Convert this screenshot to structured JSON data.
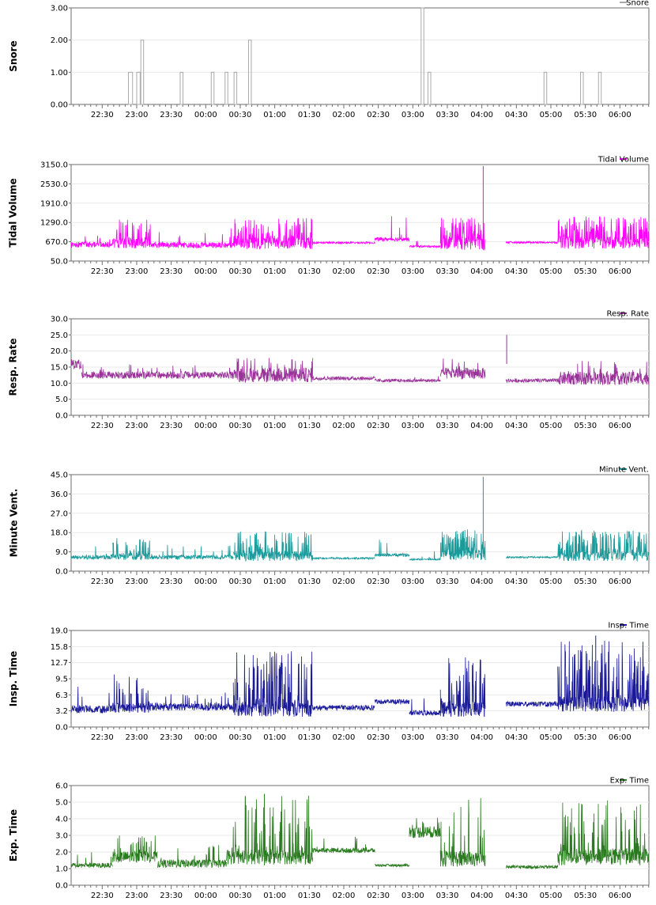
{
  "x_ticks": [
    "22:30",
    "23:00",
    "23:30",
    "00:00",
    "00:30",
    "01:00",
    "01:30",
    "02:00",
    "02:30",
    "03:00",
    "03:30",
    "04:00",
    "04:30",
    "05:00",
    "05:30",
    "06:00"
  ],
  "chart_data": [
    {
      "type": "bar",
      "title": "Snore",
      "ylabel": "Snore",
      "legend": "Snore",
      "color": "#a9a9a9",
      "ylim": [
        0,
        3
      ],
      "y_ticks": [
        "0.00",
        "1.00",
        "2.00",
        "3.00"
      ],
      "xlim_hours": [
        22.05,
        30.42
      ],
      "events": [
        {
          "t": 22.88,
          "w": 0.06,
          "v": 1
        },
        {
          "t": 23.0,
          "w": 0.05,
          "v": 1
        },
        {
          "t": 23.06,
          "w": 0.04,
          "v": 2
        },
        {
          "t": 23.63,
          "w": 0.04,
          "v": 1
        },
        {
          "t": 24.08,
          "w": 0.04,
          "v": 1
        },
        {
          "t": 24.28,
          "w": 0.04,
          "v": 1
        },
        {
          "t": 24.41,
          "w": 0.04,
          "v": 1
        },
        {
          "t": 24.62,
          "w": 0.04,
          "v": 2
        },
        {
          "t": 27.12,
          "w": 0.04,
          "v": 3
        },
        {
          "t": 27.22,
          "w": 0.04,
          "v": 1
        },
        {
          "t": 28.9,
          "w": 0.04,
          "v": 1
        },
        {
          "t": 29.43,
          "w": 0.04,
          "v": 1
        },
        {
          "t": 29.69,
          "w": 0.04,
          "v": 1
        }
      ]
    },
    {
      "type": "line",
      "title": "Tidal Volume",
      "ylabel": "Tidal Volume",
      "legend": "Tidal Volume",
      "color": "#ff00ff",
      "ylim": [
        50,
        3150
      ],
      "y_ticks": [
        "50.0",
        "670.0",
        "1290.0",
        "1910.0",
        "2530.0",
        "3150.0"
      ],
      "xlim_hours": [
        22.05,
        30.42
      ],
      "gaps": [
        [
          28.05,
          28.35
        ]
      ],
      "segments": [
        {
          "from": 22.05,
          "to": 22.65,
          "base": 580,
          "amp": 180,
          "spikes": 0.04,
          "spike_max": 900
        },
        {
          "from": 22.65,
          "to": 23.2,
          "base": 620,
          "amp": 320,
          "spikes": 0.25,
          "spike_max": 1400
        },
        {
          "from": 23.2,
          "to": 24.4,
          "base": 560,
          "amp": 180,
          "spikes": 0.05,
          "spike_max": 1100
        },
        {
          "from": 24.4,
          "to": 25.55,
          "base": 620,
          "amp": 380,
          "spikes": 0.35,
          "spike_max": 1450
        },
        {
          "from": 25.55,
          "to": 26.45,
          "base": 640,
          "amp": 60,
          "spikes": 0.0,
          "spike_max": 700
        },
        {
          "from": 26.45,
          "to": 26.95,
          "base": 750,
          "amp": 120,
          "spikes": 0.05,
          "spike_max": 1500
        },
        {
          "from": 26.95,
          "to": 27.4,
          "base": 520,
          "amp": 60,
          "spikes": 0.02,
          "spike_max": 900
        },
        {
          "from": 27.4,
          "to": 28.05,
          "base": 600,
          "amp": 400,
          "spikes": 0.4,
          "spike_max": 1450
        },
        {
          "from": 28.35,
          "to": 29.1,
          "base": 650,
          "amp": 60,
          "spikes": 0.0,
          "spike_max": 700
        },
        {
          "from": 29.1,
          "to": 30.42,
          "base": 640,
          "amp": 400,
          "spikes": 0.4,
          "spike_max": 1500
        }
      ],
      "peaks": [
        {
          "t": 28.02,
          "v": 3100
        }
      ]
    },
    {
      "type": "line",
      "title": "Resp. Rate",
      "ylabel": "Resp. Rate",
      "legend": "Resp. Rate",
      "color": "#993399",
      "ylim": [
        0,
        30
      ],
      "y_ticks": [
        "0.0",
        "5.0",
        "10.0",
        "15.0",
        "20.0",
        "25.0",
        "30.0"
      ],
      "xlim_hours": [
        22.05,
        30.42
      ],
      "gaps": [
        [
          28.05,
          28.35
        ]
      ],
      "segments": [
        {
          "from": 22.05,
          "to": 22.2,
          "base": 16,
          "amp": 3,
          "spikes": 0.0,
          "spike_max": 19
        },
        {
          "from": 22.2,
          "to": 24.4,
          "base": 12.5,
          "amp": 2.2,
          "spikes": 0.05,
          "spike_max": 16
        },
        {
          "from": 24.4,
          "to": 25.55,
          "base": 12.5,
          "amp": 4.5,
          "spikes": 0.1,
          "spike_max": 18
        },
        {
          "from": 25.55,
          "to": 26.45,
          "base": 11.5,
          "amp": 1.2,
          "spikes": 0.0,
          "spike_max": 13
        },
        {
          "from": 26.45,
          "to": 27.4,
          "base": 10.8,
          "amp": 1.0,
          "spikes": 0.02,
          "spike_max": 13
        },
        {
          "from": 27.4,
          "to": 28.05,
          "base": 13,
          "amp": 3.5,
          "spikes": 0.1,
          "spike_max": 18
        },
        {
          "from": 28.35,
          "to": 29.1,
          "base": 10.8,
          "amp": 1.2,
          "spikes": 0.0,
          "spike_max": 13
        },
        {
          "from": 29.1,
          "to": 30.42,
          "base": 11.5,
          "amp": 4.0,
          "spikes": 0.1,
          "spike_max": 17
        }
      ],
      "peaks": [
        {
          "t": 28.36,
          "v": 25
        }
      ]
    },
    {
      "type": "line",
      "title": "Minute Vent.",
      "ylabel": "Minute Vent.",
      "legend": "Minute Vent.",
      "color": "#1a9b9b",
      "ylim": [
        0,
        45
      ],
      "y_ticks": [
        "0.0",
        "9.0",
        "18.0",
        "27.0",
        "36.0",
        "45.0"
      ],
      "xlim_hours": [
        22.05,
        30.42
      ],
      "gaps": [
        [
          28.05,
          28.35
        ]
      ],
      "segments": [
        {
          "from": 22.05,
          "to": 22.65,
          "base": 6.5,
          "amp": 2,
          "spikes": 0.04,
          "spike_max": 12
        },
        {
          "from": 22.65,
          "to": 23.2,
          "base": 7,
          "amp": 3.5,
          "spikes": 0.25,
          "spike_max": 16
        },
        {
          "from": 23.2,
          "to": 24.4,
          "base": 6.5,
          "amp": 2,
          "spikes": 0.05,
          "spike_max": 13
        },
        {
          "from": 24.4,
          "to": 25.55,
          "base": 7,
          "amp": 4.5,
          "spikes": 0.35,
          "spike_max": 19
        },
        {
          "from": 25.55,
          "to": 26.45,
          "base": 6,
          "amp": 0.8,
          "spikes": 0.0,
          "spike_max": 7
        },
        {
          "from": 26.45,
          "to": 26.95,
          "base": 7.5,
          "amp": 1.5,
          "spikes": 0.05,
          "spike_max": 16
        },
        {
          "from": 26.95,
          "to": 27.4,
          "base": 5.5,
          "amp": 0.8,
          "spikes": 0.02,
          "spike_max": 10
        },
        {
          "from": 27.4,
          "to": 28.05,
          "base": 7.5,
          "amp": 5,
          "spikes": 0.4,
          "spike_max": 20
        },
        {
          "from": 28.35,
          "to": 29.1,
          "base": 6.5,
          "amp": 0.8,
          "spikes": 0.0,
          "spike_max": 7
        },
        {
          "from": 29.1,
          "to": 30.42,
          "base": 7,
          "amp": 4.5,
          "spikes": 0.4,
          "spike_max": 19
        }
      ],
      "peaks": [
        {
          "t": 28.02,
          "v": 44
        }
      ]
    },
    {
      "type": "line",
      "title": "Insp. Time",
      "ylabel": "Insp. Time",
      "legend": "Insp. Time",
      "color": "#1a1a99",
      "ylim": [
        0,
        19
      ],
      "y_ticks": [
        "0.0",
        "3.2",
        "6.3",
        "9.5",
        "12.7",
        "15.8",
        "19.0"
      ],
      "xlim_hours": [
        22.05,
        30.42
      ],
      "gaps": [
        [
          28.05,
          28.35
        ]
      ],
      "segments": [
        {
          "from": 22.05,
          "to": 22.65,
          "base": 3.5,
          "amp": 1.5,
          "spikes": 0.05,
          "spike_max": 8
        },
        {
          "from": 22.65,
          "to": 23.2,
          "base": 3.8,
          "amp": 2,
          "spikes": 0.2,
          "spike_max": 11
        },
        {
          "from": 23.2,
          "to": 24.4,
          "base": 4,
          "amp": 1.5,
          "spikes": 0.05,
          "spike_max": 7
        },
        {
          "from": 24.4,
          "to": 25.55,
          "base": 3.5,
          "amp": 3,
          "spikes": 0.35,
          "spike_max": 15
        },
        {
          "from": 25.55,
          "to": 26.45,
          "base": 3.8,
          "amp": 1,
          "spikes": 0.0,
          "spike_max": 5
        },
        {
          "from": 26.45,
          "to": 26.95,
          "base": 5,
          "amp": 1,
          "spikes": 0.03,
          "spike_max": 9
        },
        {
          "from": 26.95,
          "to": 27.4,
          "base": 2.8,
          "amp": 1,
          "spikes": 0.03,
          "spike_max": 8
        },
        {
          "from": 27.4,
          "to": 28.05,
          "base": 3.5,
          "amp": 3,
          "spikes": 0.35,
          "spike_max": 14
        },
        {
          "from": 28.35,
          "to": 29.1,
          "base": 4.5,
          "amp": 1,
          "spikes": 0.0,
          "spike_max": 6
        },
        {
          "from": 29.1,
          "to": 30.42,
          "base": 4.5,
          "amp": 3,
          "spikes": 0.35,
          "spike_max": 17
        }
      ],
      "peaks": [
        {
          "t": 29.65,
          "v": 18
        }
      ]
    },
    {
      "type": "line",
      "title": "Exp. Time",
      "ylabel": "Exp. Time",
      "legend": "Exp. Time",
      "color": "#2a7a1f",
      "ylim": [
        0,
        6
      ],
      "y_ticks": [
        "0.0",
        "1.0",
        "2.0",
        "3.0",
        "4.0",
        "5.0",
        "6.0"
      ],
      "xlim_hours": [
        22.05,
        30.42
      ],
      "gaps": [
        [
          28.05,
          28.35
        ]
      ],
      "segments": [
        {
          "from": 22.05,
          "to": 22.65,
          "base": 1.2,
          "amp": 0.3,
          "spikes": 0.03,
          "spike_max": 2
        },
        {
          "from": 22.65,
          "to": 23.3,
          "base": 1.7,
          "amp": 0.7,
          "spikes": 0.15,
          "spike_max": 3
        },
        {
          "from": 23.3,
          "to": 24.3,
          "base": 1.3,
          "amp": 0.5,
          "spikes": 0.05,
          "spike_max": 2.5
        },
        {
          "from": 24.3,
          "to": 25.55,
          "base": 1.7,
          "amp": 0.9,
          "spikes": 0.2,
          "spike_max": 5.4
        },
        {
          "from": 25.55,
          "to": 26.45,
          "base": 2.1,
          "amp": 0.3,
          "spikes": 0.03,
          "spike_max": 3
        },
        {
          "from": 26.45,
          "to": 26.95,
          "base": 1.2,
          "amp": 0.15,
          "spikes": 0.0,
          "spike_max": 1.4
        },
        {
          "from": 26.95,
          "to": 27.4,
          "base": 3.2,
          "amp": 0.7,
          "spikes": 0.1,
          "spike_max": 4.2
        },
        {
          "from": 27.4,
          "to": 28.05,
          "base": 1.6,
          "amp": 1.0,
          "spikes": 0.2,
          "spike_max": 5.3
        },
        {
          "from": 28.35,
          "to": 29.1,
          "base": 1.1,
          "amp": 0.2,
          "spikes": 0.0,
          "spike_max": 1.3
        },
        {
          "from": 29.1,
          "to": 30.42,
          "base": 1.7,
          "amp": 1.0,
          "spikes": 0.25,
          "spike_max": 5.2
        }
      ],
      "peaks": [
        {
          "t": 24.85,
          "v": 5.5
        }
      ]
    }
  ]
}
